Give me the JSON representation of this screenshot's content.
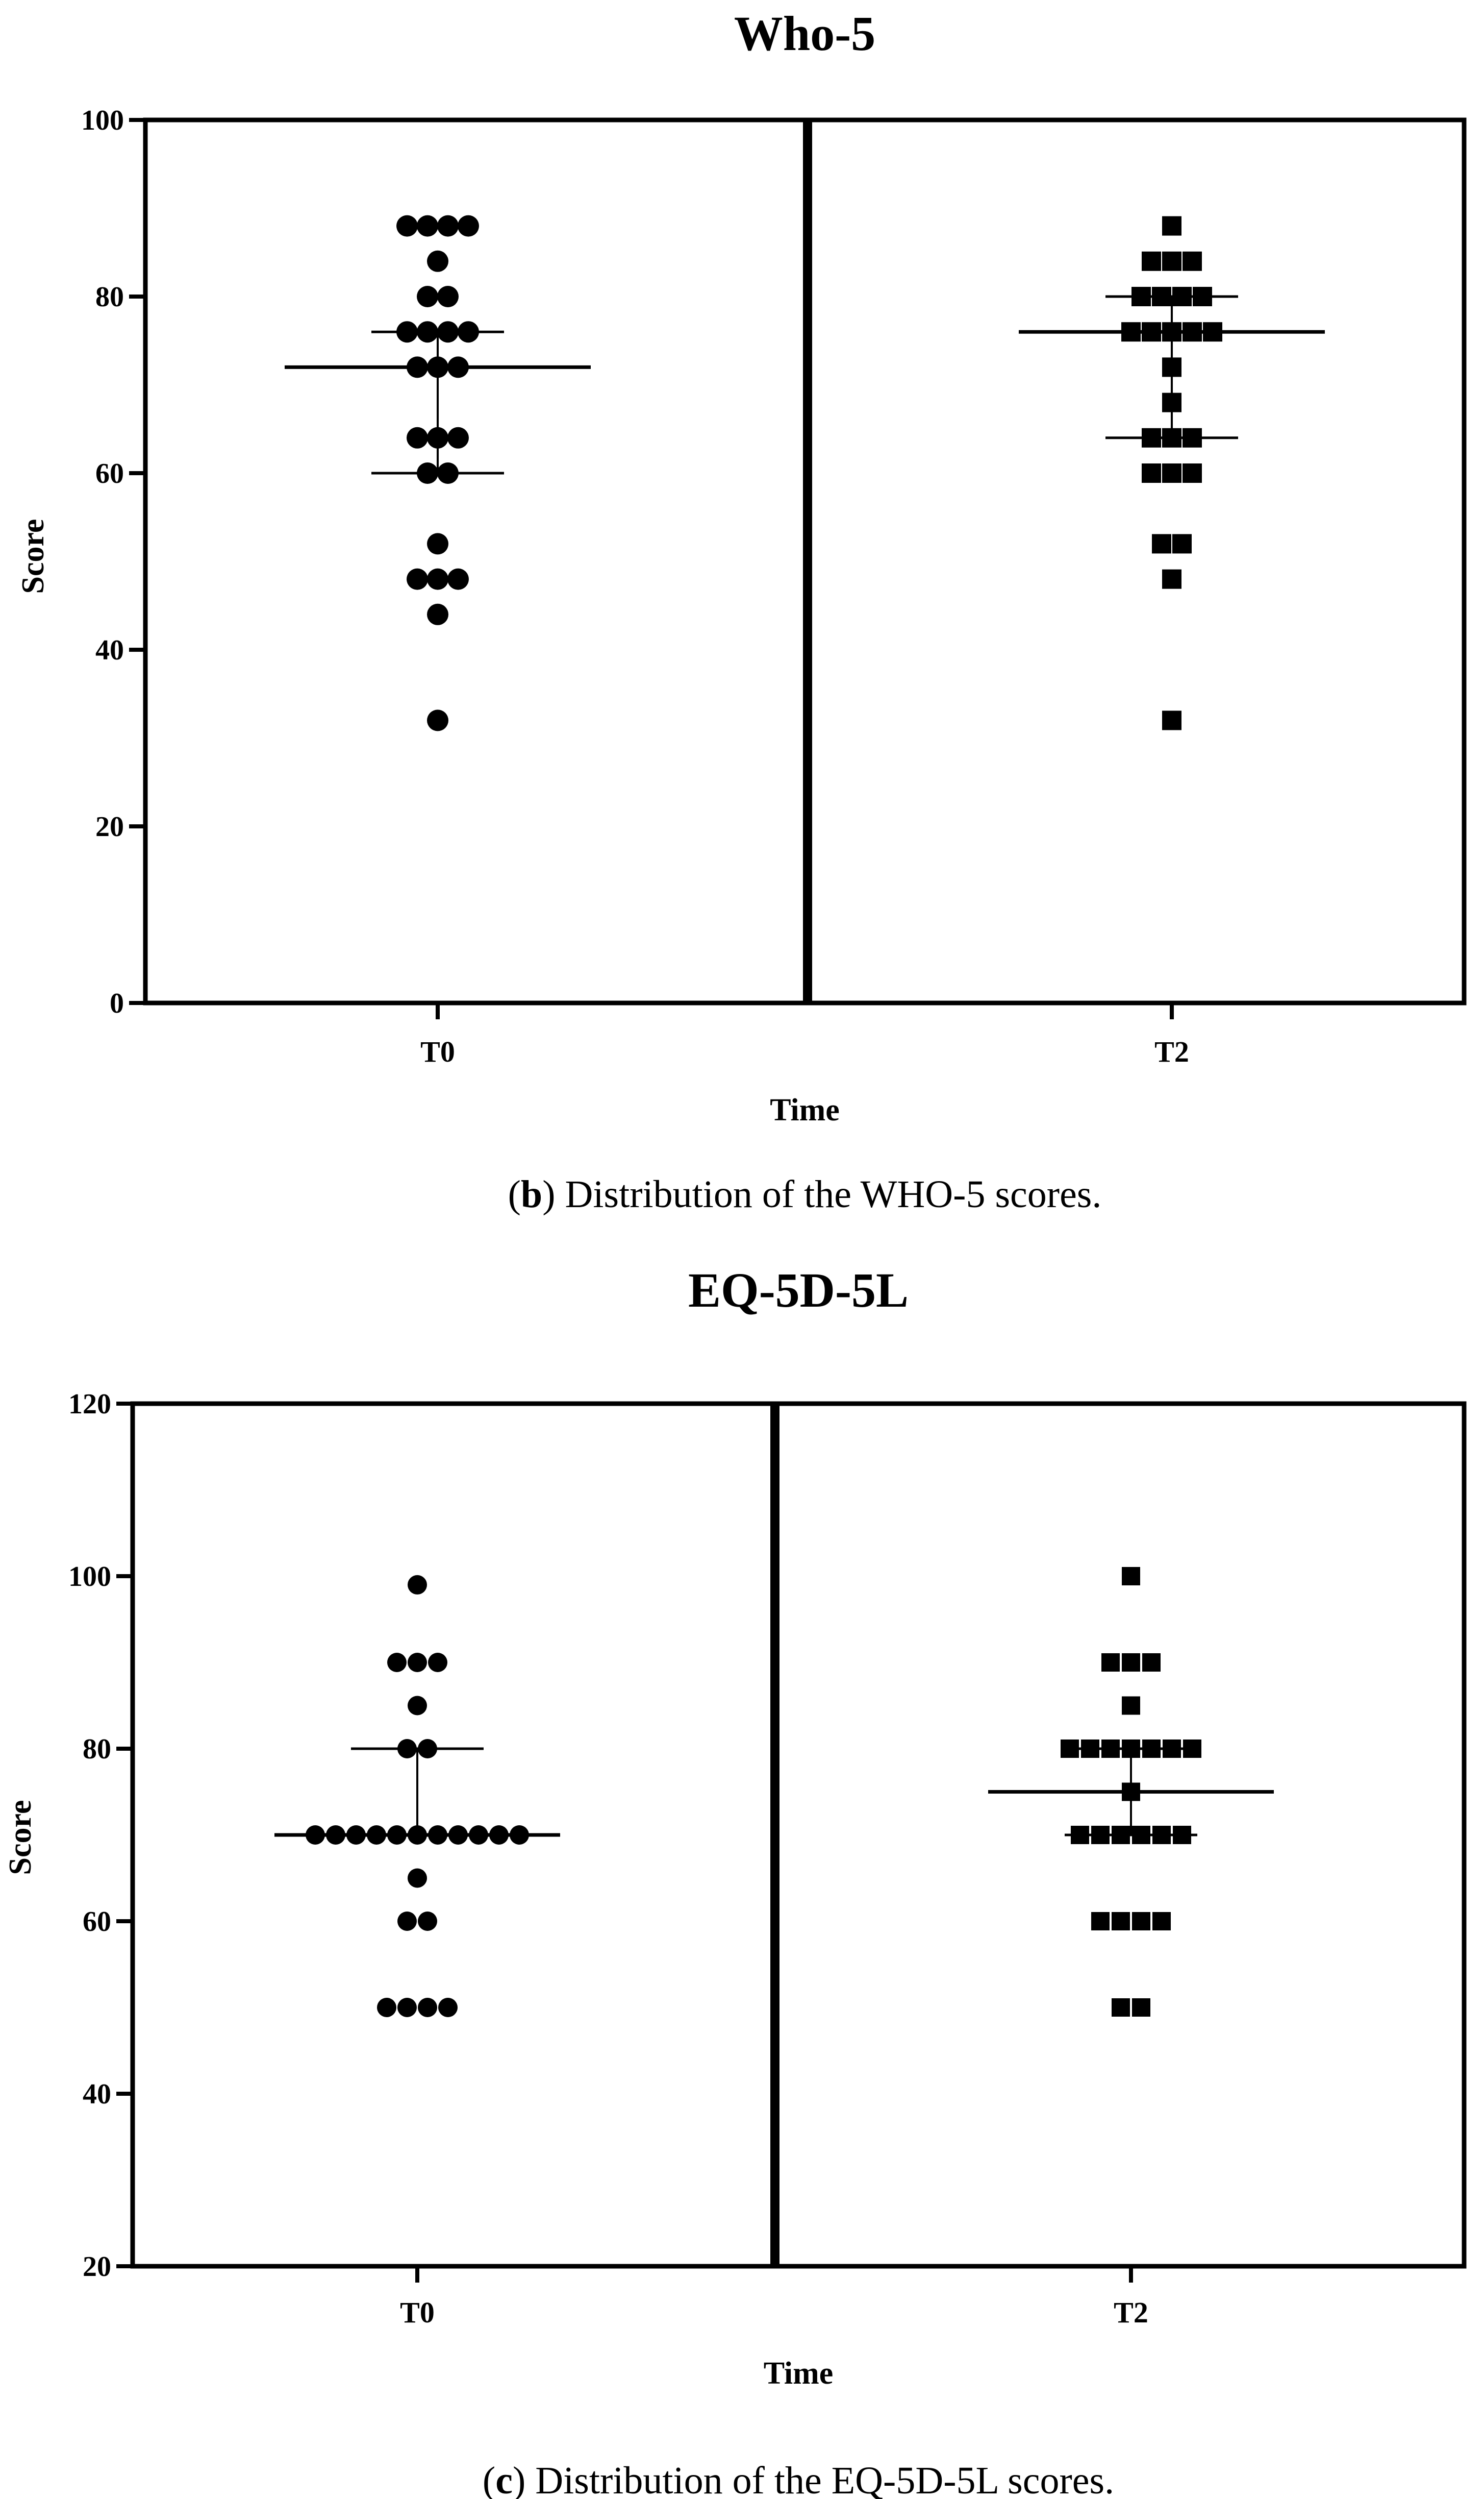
{
  "chart_data": [
    {
      "type": "scatter",
      "subtype": "dot-plot-median-iqr",
      "title": "Who-5",
      "xlabel": "Time",
      "ylabel": "Score",
      "ylim": [
        0,
        100
      ],
      "yticks": [
        0,
        20,
        40,
        60,
        80,
        100
      ],
      "categories": [
        "T0",
        "T2"
      ],
      "caption_letter": "b",
      "caption_text": ") Distribution of the WHO-5 scores.",
      "series": [
        {
          "name": "T0",
          "marker": "circle",
          "values": [
            88,
            88,
            88,
            88,
            84,
            80,
            80,
            76,
            76,
            76,
            76,
            72,
            72,
            72,
            64,
            64,
            64,
            60,
            60,
            52,
            48,
            48,
            48,
            44,
            32
          ],
          "median": 72,
          "q1": 60,
          "q3": 76
        },
        {
          "name": "T2",
          "marker": "square",
          "values": [
            88,
            84,
            84,
            84,
            80,
            80,
            80,
            80,
            76,
            76,
            76,
            76,
            76,
            72,
            68,
            64,
            64,
            64,
            60,
            60,
            60,
            52,
            52,
            48,
            32
          ],
          "median": 76,
          "q1": 64,
          "q3": 80
        }
      ]
    },
    {
      "type": "scatter",
      "subtype": "dot-plot-median-iqr",
      "title": "EQ-5D-5L",
      "xlabel": "Time",
      "ylabel": "Score",
      "ylim": [
        20,
        120
      ],
      "yticks": [
        20,
        40,
        60,
        80,
        100,
        120
      ],
      "categories": [
        "T0",
        "T2"
      ],
      "caption_letter": "c",
      "caption_text": ") Distribution of the EQ-5D-5L scores.",
      "series": [
        {
          "name": "T0",
          "marker": "circle",
          "values": [
            99,
            90,
            90,
            90,
            85,
            80,
            80,
            70,
            70,
            70,
            70,
            70,
            70,
            70,
            70,
            70,
            70,
            70,
            65,
            60,
            60,
            50,
            50,
            50,
            50
          ],
          "median": 70,
          "q1": 70,
          "q3": 80
        },
        {
          "name": "T2",
          "marker": "square",
          "values": [
            100,
            90,
            90,
            90,
            85,
            80,
            80,
            80,
            80,
            80,
            80,
            80,
            75,
            70,
            70,
            70,
            70,
            70,
            70,
            60,
            60,
            60,
            60,
            50,
            50
          ],
          "median": 75,
          "q1": 70,
          "q3": 80
        }
      ]
    }
  ]
}
